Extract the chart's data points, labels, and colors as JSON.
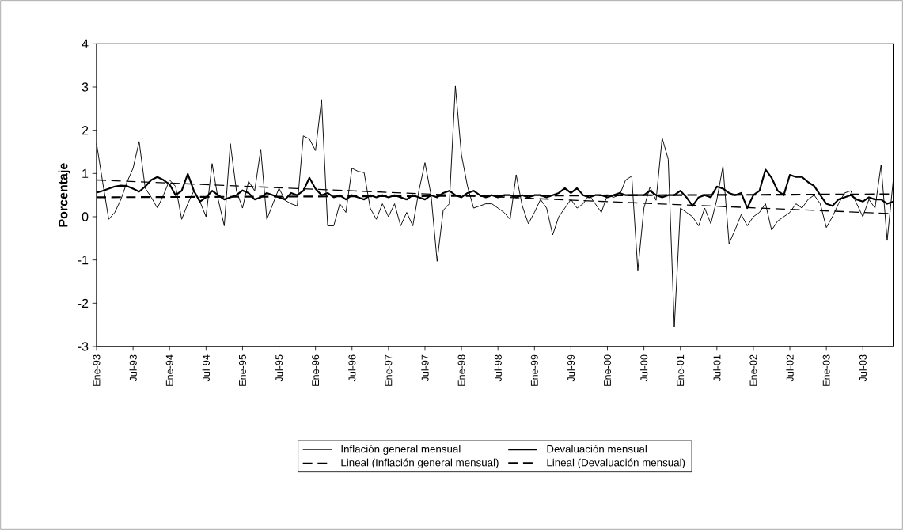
{
  "chart_data": {
    "type": "line",
    "ylabel": "Porcentaje",
    "legend": "bottom",
    "x": [
      "1993-01",
      "1993-02",
      "1993-03",
      "1993-04",
      "1993-05",
      "1993-06",
      "1993-07",
      "1993-08",
      "1993-09",
      "1993-10",
      "1993-11",
      "1993-12",
      "1994-01",
      "1994-02",
      "1994-03",
      "1994-04",
      "1994-05",
      "1994-06",
      "1994-07",
      "1994-08",
      "1994-09",
      "1994-10",
      "1994-11",
      "1994-12",
      "1995-01",
      "1995-02",
      "1995-03",
      "1995-04",
      "1995-05",
      "1995-06",
      "1995-07",
      "1995-08",
      "1995-09",
      "1995-10",
      "1995-11",
      "1995-12",
      "1996-01",
      "1996-02",
      "1996-03",
      "1996-04",
      "1996-05",
      "1996-06",
      "1996-07",
      "1996-08",
      "1996-09",
      "1996-10",
      "1996-11",
      "1996-12",
      "1997-01",
      "1997-02",
      "1997-03",
      "1997-04",
      "1997-05",
      "1997-06",
      "1997-07",
      "1997-08",
      "1997-09",
      "1997-10",
      "1997-11",
      "1997-12",
      "1998-01",
      "1998-02",
      "1998-03",
      "1998-04",
      "1998-05",
      "1998-06",
      "1998-07",
      "1998-08",
      "1998-09",
      "1998-10",
      "1998-11",
      "1998-12",
      "1999-01",
      "1999-02",
      "1999-03",
      "1999-04",
      "1999-05",
      "1999-06",
      "1999-07",
      "1999-08",
      "1999-09",
      "1999-10",
      "1999-11",
      "1999-12",
      "2000-01",
      "2000-02",
      "2000-03",
      "2000-04",
      "2000-05",
      "2000-06",
      "2000-07",
      "2000-08",
      "2000-09",
      "2000-10",
      "2000-11",
      "2000-12",
      "2001-01",
      "2001-02",
      "2001-03",
      "2001-04",
      "2001-05",
      "2001-06",
      "2001-07",
      "2001-08",
      "2001-09",
      "2001-10",
      "2001-11",
      "2001-12",
      "2002-01",
      "2002-02",
      "2002-03",
      "2002-04",
      "2002-05",
      "2002-06",
      "2002-07",
      "2002-08",
      "2002-09",
      "2002-10",
      "2002-11",
      "2002-12",
      "2003-01",
      "2003-02",
      "2003-03",
      "2003-04",
      "2003-05",
      "2003-06",
      "2003-07",
      "2003-08",
      "2003-09",
      "2003-10",
      "2003-11",
      "2003-12"
    ],
    "xlim": [
      "1993-01",
      "2003-12"
    ],
    "xticks": [
      {
        "value": "1993-01",
        "label": "Ene-93"
      },
      {
        "value": "1993-07",
        "label": "Jul-93"
      },
      {
        "value": "1994-01",
        "label": "Ene-94"
      },
      {
        "value": "1994-07",
        "label": "Jul-94"
      },
      {
        "value": "1995-01",
        "label": "Ene-95"
      },
      {
        "value": "1995-07",
        "label": "Jul-95"
      },
      {
        "value": "1996-01",
        "label": "Ene-96"
      },
      {
        "value": "1996-07",
        "label": "Jul-96"
      },
      {
        "value": "1997-01",
        "label": "Ene-97"
      },
      {
        "value": "1997-07",
        "label": "Jul-97"
      },
      {
        "value": "1998-01",
        "label": "Ene-98"
      },
      {
        "value": "1998-07",
        "label": "Jul-98"
      },
      {
        "value": "1999-01",
        "label": "Ene-99"
      },
      {
        "value": "1999-07",
        "label": "Jul-99"
      },
      {
        "value": "2000-01",
        "label": "Ene-00"
      },
      {
        "value": "2000-07",
        "label": "Jul-00"
      },
      {
        "value": "2001-01",
        "label": "Ene-01"
      },
      {
        "value": "2001-07",
        "label": "Jul-01"
      },
      {
        "value": "2002-01",
        "label": "Ene-02"
      },
      {
        "value": "2002-07",
        "label": "Jul-02"
      },
      {
        "value": "2003-01",
        "label": "Ene-03"
      },
      {
        "value": "2003-07",
        "label": "Jul-03"
      }
    ],
    "ylim": [
      -3,
      4
    ],
    "yticks": [
      -3,
      -2,
      -1,
      0,
      1,
      2,
      3,
      4
    ],
    "series": [
      {
        "name": "Inflación general mensual",
        "color": "#000000",
        "line_style": "solid",
        "values": [
          1.69,
          0.8,
          -0.06,
          0.1,
          0.4,
          0.8,
          1.12,
          1.74,
          0.66,
          0.45,
          0.2,
          0.5,
          0.85,
          0.7,
          -0.06,
          0.3,
          0.6,
          0.35,
          0.0,
          1.23,
          0.4,
          -0.21,
          1.69,
          0.6,
          0.2,
          0.82,
          0.6,
          1.56,
          -0.06,
          0.3,
          0.66,
          0.38,
          0.3,
          0.25,
          1.87,
          1.8,
          1.53,
          2.71,
          -0.21,
          -0.21,
          0.3,
          0.1,
          1.12,
          1.05,
          1.02,
          0.2,
          -0.06,
          0.3,
          0.0,
          0.3,
          -0.21,
          0.1,
          -0.21,
          0.6,
          1.25,
          0.5,
          -1.03,
          0.15,
          0.3,
          3.02,
          1.43,
          0.7,
          0.2,
          0.25,
          0.3,
          0.3,
          0.2,
          0.1,
          -0.06,
          0.97,
          0.25,
          -0.16,
          0.1,
          0.4,
          0.2,
          -0.42,
          0.0,
          0.2,
          0.4,
          0.2,
          0.3,
          0.5,
          0.3,
          0.1,
          0.5,
          0.45,
          0.5,
          0.85,
          0.94,
          -1.24,
          0.2,
          0.69,
          0.38,
          1.82,
          1.33,
          -2.55,
          0.2,
          0.1,
          0.0,
          -0.21,
          0.2,
          -0.16,
          0.4,
          1.17,
          -0.62,
          -0.3,
          0.05,
          -0.21,
          0.0,
          0.1,
          0.3,
          -0.31,
          -0.1,
          0.0,
          0.1,
          0.3,
          0.2,
          0.4,
          0.5,
          0.3,
          -0.25,
          0.0,
          0.3,
          0.55,
          0.6,
          0.3,
          0.0,
          0.4,
          0.2,
          1.2,
          -0.55,
          0.85
        ]
      },
      {
        "name": "Devaluación mensual",
        "color": "#000000",
        "line_style": "solid",
        "values": [
          0.56,
          0.6,
          0.65,
          0.7,
          0.72,
          0.71,
          0.65,
          0.58,
          0.7,
          0.85,
          0.92,
          0.85,
          0.75,
          0.5,
          0.6,
          0.99,
          0.6,
          0.35,
          0.45,
          0.6,
          0.5,
          0.4,
          0.45,
          0.5,
          0.61,
          0.55,
          0.4,
          0.45,
          0.55,
          0.5,
          0.45,
          0.4,
          0.55,
          0.5,
          0.6,
          0.9,
          0.65,
          0.5,
          0.55,
          0.45,
          0.5,
          0.4,
          0.5,
          0.45,
          0.4,
          0.5,
          0.45,
          0.5,
          0.45,
          0.5,
          0.45,
          0.4,
          0.5,
          0.45,
          0.4,
          0.5,
          0.45,
          0.55,
          0.6,
          0.5,
          0.45,
          0.55,
          0.6,
          0.5,
          0.45,
          0.5,
          0.45,
          0.5,
          0.5,
          0.45,
          0.5,
          0.45,
          0.5,
          0.5,
          0.45,
          0.5,
          0.55,
          0.66,
          0.55,
          0.66,
          0.5,
          0.45,
          0.5,
          0.5,
          0.45,
          0.5,
          0.55,
          0.5,
          0.5,
          0.5,
          0.5,
          0.6,
          0.5,
          0.45,
          0.5,
          0.5,
          0.6,
          0.45,
          0.25,
          0.45,
          0.5,
          0.45,
          0.7,
          0.65,
          0.55,
          0.5,
          0.55,
          0.2,
          0.5,
          0.6,
          1.09,
          0.9,
          0.6,
          0.5,
          0.97,
          0.92,
          0.92,
          0.8,
          0.71,
          0.5,
          0.3,
          0.25,
          0.4,
          0.45,
          0.5,
          0.4,
          0.35,
          0.45,
          0.4,
          0.4,
          0.3,
          0.35
        ]
      },
      {
        "name": "Lineal (Inflación general mensual)",
        "type": "line",
        "color": "#000000",
        "line_style": "dashed",
        "x": [
          "1993-01",
          "2003-12"
        ],
        "values": [
          0.85,
          0.07
        ]
      },
      {
        "name": "Lineal (Devaluación mensual)",
        "type": "line",
        "color": "#000000",
        "line_style": "dashed",
        "x": [
          "1993-01",
          "2003-12"
        ],
        "values": [
          0.45,
          0.52
        ]
      }
    ]
  }
}
